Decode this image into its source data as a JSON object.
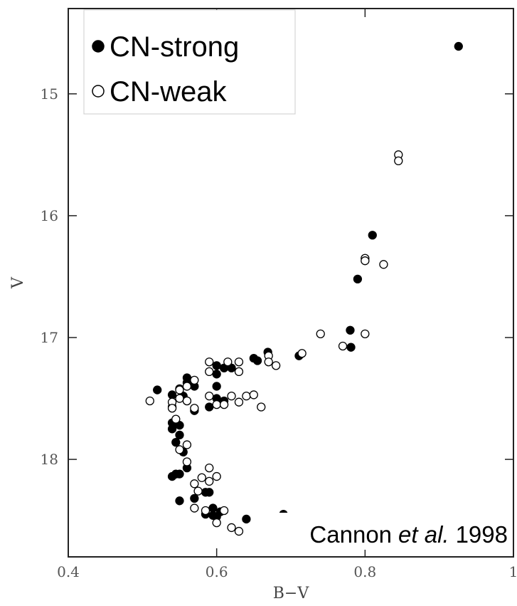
{
  "chart_data": {
    "type": "scatter",
    "x_label": "B−V",
    "y_label": "V",
    "xlim": [
      0.4,
      1
    ],
    "xticks": [
      0.4,
      0.6,
      0.8,
      1
    ],
    "ylim": [
      14.3,
      18.8
    ],
    "yticks": [
      15,
      16,
      17,
      18
    ],
    "invert_y": true,
    "legend": "upper left",
    "annotation_parts": [
      "Cannon",
      "et al.",
      "1998"
    ],
    "series": [
      {
        "name": "CN-strong",
        "color": "#000000",
        "filled": true,
        "x": [
          0.926,
          0.81,
          0.79,
          0.78,
          0.781,
          0.711,
          0.669,
          0.65,
          0.655,
          0.62,
          0.61,
          0.6,
          0.6,
          0.6,
          0.6,
          0.59,
          0.61,
          0.56,
          0.56,
          0.57,
          0.55,
          0.52,
          0.54,
          0.555,
          0.56,
          0.54,
          0.57,
          0.54,
          0.55,
          0.54,
          0.55,
          0.545,
          0.555,
          0.56,
          0.545,
          0.54,
          0.55,
          0.585,
          0.59,
          0.57,
          0.55,
          0.595,
          0.605,
          0.585,
          0.595,
          0.6,
          0.64,
          0.69
        ],
        "y": [
          14.61,
          16.16,
          16.52,
          16.94,
          17.08,
          17.15,
          17.12,
          17.17,
          17.19,
          17.25,
          17.25,
          17.23,
          17.3,
          17.4,
          17.5,
          17.57,
          17.52,
          17.33,
          17.37,
          17.4,
          17.42,
          17.43,
          17.47,
          17.48,
          17.52,
          17.57,
          17.6,
          17.7,
          17.72,
          17.75,
          17.8,
          17.86,
          17.94,
          18.07,
          18.12,
          18.14,
          18.12,
          18.27,
          18.27,
          18.32,
          18.34,
          18.4,
          18.43,
          18.45,
          18.46,
          18.47,
          18.49,
          18.45
        ]
      },
      {
        "name": "CN-weak",
        "color": "#000000",
        "filled": false,
        "x": [
          0.845,
          0.845,
          0.8,
          0.8,
          0.825,
          0.74,
          0.8,
          0.77,
          0.715,
          0.67,
          0.67,
          0.68,
          0.59,
          0.615,
          0.63,
          0.59,
          0.63,
          0.57,
          0.56,
          0.55,
          0.55,
          0.56,
          0.6,
          0.59,
          0.62,
          0.64,
          0.65,
          0.61,
          0.63,
          0.66,
          0.51,
          0.54,
          0.54,
          0.57,
          0.545,
          0.56,
          0.55,
          0.56,
          0.59,
          0.58,
          0.6,
          0.59,
          0.57,
          0.575,
          0.57,
          0.585,
          0.61,
          0.6,
          0.62,
          0.63
        ],
        "y": [
          15.5,
          15.55,
          16.35,
          16.37,
          16.4,
          16.97,
          16.97,
          17.07,
          17.13,
          17.15,
          17.2,
          17.23,
          17.2,
          17.2,
          17.2,
          17.28,
          17.28,
          17.35,
          17.4,
          17.43,
          17.5,
          17.52,
          17.55,
          17.48,
          17.48,
          17.48,
          17.47,
          17.55,
          17.53,
          17.57,
          17.52,
          17.53,
          17.58,
          17.58,
          17.67,
          17.88,
          17.92,
          18.02,
          18.07,
          18.15,
          18.14,
          18.18,
          18.2,
          18.26,
          18.4,
          18.42,
          18.42,
          18.52,
          18.56,
          18.59
        ]
      }
    ]
  }
}
